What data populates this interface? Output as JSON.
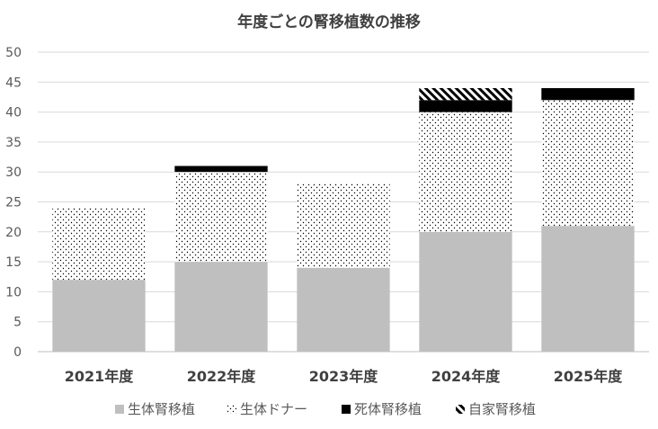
{
  "chart_data": {
    "type": "bar",
    "stacked": true,
    "title": "年度ごとの腎移植数の推移",
    "categories": [
      "2021年度",
      "2022年度",
      "2023年度",
      "2024年度",
      "2025年度"
    ],
    "series": [
      {
        "name": "生体腎移植",
        "values": [
          12,
          15,
          14,
          20,
          21
        ],
        "color": "#bfbfbf",
        "pattern": "solid"
      },
      {
        "name": "生体ドナー",
        "values": [
          12,
          15,
          14,
          20,
          21
        ],
        "color": "#000000",
        "pattern": "dots"
      },
      {
        "name": "死体腎移植",
        "values": [
          0,
          1,
          0,
          2,
          2
        ],
        "color": "#000000",
        "pattern": "solid"
      },
      {
        "name": "自家腎移植",
        "values": [
          0,
          0,
          0,
          2,
          0
        ],
        "color": "#000000",
        "pattern": "diagonal"
      }
    ],
    "ylim": [
      0,
      50
    ],
    "yticks": [
      0,
      5,
      10,
      15,
      20,
      25,
      30,
      35,
      40,
      45,
      50
    ],
    "grid": true,
    "legend_position": "bottom"
  }
}
